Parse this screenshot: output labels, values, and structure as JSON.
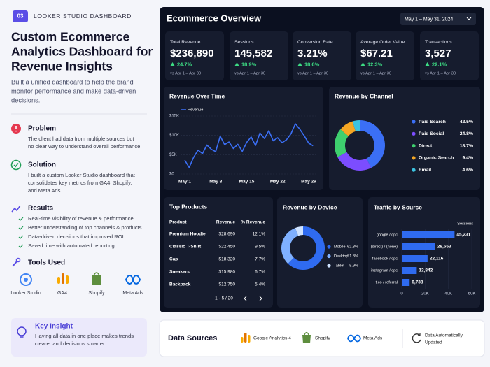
{
  "header": {
    "badge": "03",
    "eyebrow": "LOOKER STUDIO DASHBOARD",
    "title_lines": [
      "Custom Ecommerce",
      "Analytics Dashboard for",
      "Revenue Insights"
    ],
    "description_lines": [
      "Built a unified dashboard to help the brand",
      "monitor performance and make data-driven",
      "decisions."
    ]
  },
  "sections": [
    {
      "title": "Problem",
      "lines": [
        "The client had data from multiple sources but",
        "no clear way to understand overall performance."
      ]
    },
    {
      "title": "Solution",
      "lines": [
        "I built a custom Looker Studio dashboard that",
        "consolidates key metrics from GA4, Shopify,",
        "and Meta Ads."
      ]
    }
  ],
  "results": {
    "title": "Results",
    "items": [
      "Real-time visibility of revenue & performance",
      "Better understanding of top channels & products",
      "Data-driven decisions that improved ROI",
      "Saved time with automated reporting"
    ]
  },
  "tools": {
    "title": "Tools Used",
    "items": [
      "Looker Studio",
      "GA4",
      "Shopify",
      "Meta Ads"
    ]
  },
  "insight": {
    "title": "Key Insight",
    "lines": [
      "Having all data in one place makes trends",
      "clearer and decisions smarter."
    ]
  },
  "dashboard": {
    "title": "Ecommerce Overview",
    "date_range": "May 1 – May 31, 2024",
    "kpis": [
      {
        "label": "Total Revenue",
        "value": "$236,890",
        "change": "24.7%",
        "compare": "vs Apr 1 – Apr 30"
      },
      {
        "label": "Sessions",
        "value": "145,582",
        "change": "18.9%",
        "compare": "vs Apr 1 – Apr 30"
      },
      {
        "label": "Conversion Rate",
        "value": "3.21%",
        "change": "18.6%",
        "compare": "vs Apr 1 – Apr 30"
      },
      {
        "label": "Average Order Value",
        "value": "$67.21",
        "change": "12.3%",
        "compare": "vs Apr 1 – Apr 30"
      },
      {
        "label": "Transactions",
        "value": "3,527",
        "change": "22.1%",
        "compare": "vs Apr 1 – Apr 30"
      }
    ],
    "revenue_over_time": {
      "type": "line",
      "title": "Revenue Over Time",
      "series_name": "Revenue",
      "color": "#3b6ff5",
      "categories": [
        "May 1",
        null,
        null,
        null,
        null,
        null,
        null,
        "May 8",
        null,
        null,
        null,
        null,
        null,
        null,
        "May 15",
        null,
        null,
        null,
        null,
        null,
        null,
        "May 22",
        null,
        null,
        null,
        null,
        null,
        null,
        "May 29",
        null
      ],
      "values": [
        3600,
        1700,
        4300,
        6200,
        5300,
        7500,
        6400,
        5800,
        9800,
        7600,
        8300,
        6600,
        7700,
        5900,
        8200,
        9600,
        7400,
        10600,
        9200,
        11200,
        8600,
        9400,
        8100,
        8900,
        10400,
        13000,
        11600,
        9900,
        8000,
        7300
      ],
      "ylim": [
        0,
        15000
      ],
      "yticks": [
        {
          "value": 0,
          "label": "$0"
        },
        {
          "value": 5000,
          "label": "$5K"
        },
        {
          "value": 10000,
          "label": "$10K"
        },
        {
          "value": 15000,
          "label": "$15K"
        }
      ]
    },
    "revenue_by_channel": {
      "type": "pie",
      "title": "Revenue by Channel",
      "names": [
        "Paid Search",
        "Paid Social",
        "Direct",
        "Organic Search",
        "Email"
      ],
      "values": [
        42.5,
        24.8,
        18.7,
        9.4,
        4.6
      ],
      "value_labels": [
        "42.5%",
        "24.8%",
        "18.7%",
        "9.4%",
        "4.6%"
      ],
      "colors": [
        "#3b6ff5",
        "#7c4dff",
        "#3ecf6e",
        "#f5a623",
        "#3cc3e0"
      ]
    },
    "top_products": {
      "title": "Top Products",
      "columns": [
        "Product",
        "Revenue",
        "% Revenue"
      ],
      "rows": [
        [
          "Premium Hoodie",
          "$28,690",
          "12.1%"
        ],
        [
          "Classic T-Shirt",
          "$22,450",
          "9.5%"
        ],
        [
          "Cap",
          "$18,320",
          "7.7%"
        ],
        [
          "Sneakers",
          "$15,980",
          "6.7%"
        ],
        [
          "Backpack",
          "$12,750",
          "5.4%"
        ]
      ],
      "pager": "1 - 5 / 20"
    },
    "revenue_by_device": {
      "type": "pie",
      "title": "Revenue by Device",
      "names": [
        "Mobile",
        "Desktop",
        "Tablet"
      ],
      "values": [
        62.3,
        31.8,
        5.9
      ],
      "value_labels": [
        "62.3%",
        "31.8%",
        "5.9%"
      ],
      "colors": [
        "#2f6bf0",
        "#7fb0ff",
        "#cfe3ff"
      ]
    },
    "traffic_by_source": {
      "type": "bar",
      "title": "Traffic by Source",
      "value_header": "Sessions",
      "categories": [
        "google / cpc",
        "(direct) / (none)",
        "facebook / cpc",
        "instagram / cpc",
        "t.co / referral"
      ],
      "values": [
        45231,
        28653,
        22116,
        12842,
        6738
      ],
      "value_labels": [
        "45,231",
        "28,653",
        "22,116",
        "12,842",
        "6,738"
      ],
      "color": "#2f6bf0",
      "xlim": [
        0,
        60000
      ],
      "xticks": [
        0,
        {
          "value": 20000,
          "label": "20K"
        },
        {
          "value": 40000,
          "label": "40K"
        },
        {
          "value": 60000,
          "label": "60K"
        }
      ]
    }
  },
  "data_sources": {
    "title": "Data Sources",
    "items": [
      "Google Analytics 4",
      "Shopify",
      "Meta Ads"
    ],
    "status_lines": [
      "Data Automatically",
      "Updated"
    ]
  }
}
